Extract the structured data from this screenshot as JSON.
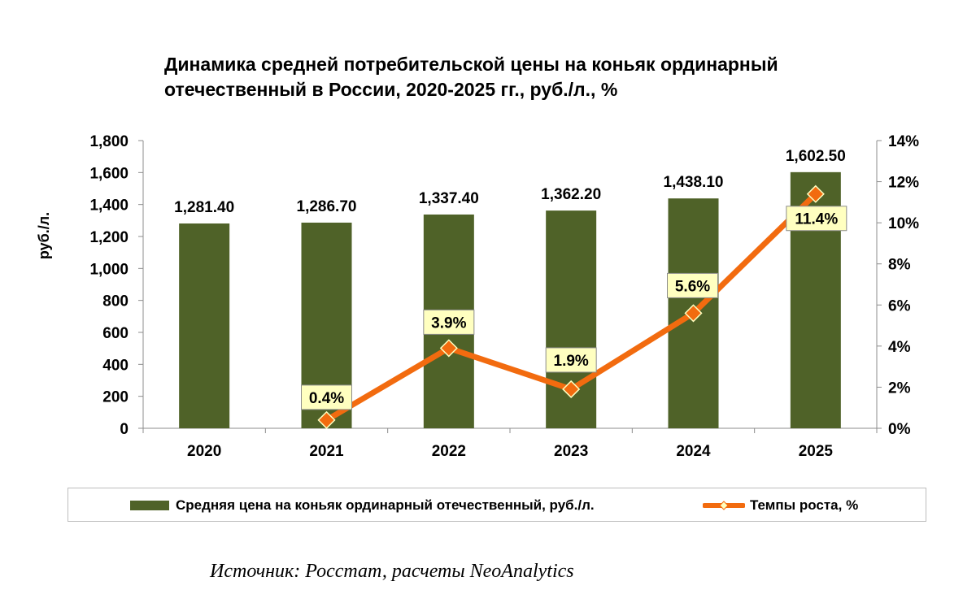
{
  "chart_data": {
    "type": "bar",
    "title": "Динамика средней потребительской цены на коньяк ординарный отечественный в России, 2020-2025 гг., руб./л., %",
    "title_lines": [
      "Динамика средней потребительской цены на коньяк ординарный",
      "отечественный в России, 2020-2025 гг., руб./л., %"
    ],
    "categories": [
      "2020",
      "2021",
      "2022",
      "2023",
      "2024",
      "2025"
    ],
    "series": [
      {
        "name": "Средняя цена на коньяк ординарный отечественный, руб./л.",
        "type": "bar",
        "axis": "left",
        "values": [
          1281.4,
          1286.7,
          1337.4,
          1362.2,
          1438.1,
          1602.5
        ],
        "labels": [
          "1,281.40",
          "1,286.70",
          "1,337.40",
          "1,362.20",
          "1,438.10",
          "1,602.50"
        ],
        "color": "#4f6228"
      },
      {
        "name": "Темпы роста, %",
        "type": "line",
        "axis": "right",
        "values": [
          null,
          0.4,
          3.9,
          1.9,
          5.6,
          11.4
        ],
        "labels": [
          "",
          "0.4%",
          "3.9%",
          "1.9%",
          "5.6%",
          "11.4%"
        ],
        "color": "#f26b0f",
        "marker_color": "#f26b0f",
        "label_bg": "#ffffc0"
      }
    ],
    "ylabel": "руб./л.",
    "xlabel": "",
    "ylim": [
      0,
      1800
    ],
    "yticks": [
      "0",
      "200",
      "400",
      "600",
      "800",
      "1,000",
      "1,200",
      "1,400",
      "1,600",
      "1,800"
    ],
    "y2lim": [
      0,
      14
    ],
    "y2ticks": [
      "0%",
      "2%",
      "4%",
      "6%",
      "8%",
      "10%",
      "12%",
      "14%"
    ],
    "grid": false,
    "legend_position": "bottom"
  },
  "source": "Источник: Росстат, расчеты NeoAnalytics"
}
